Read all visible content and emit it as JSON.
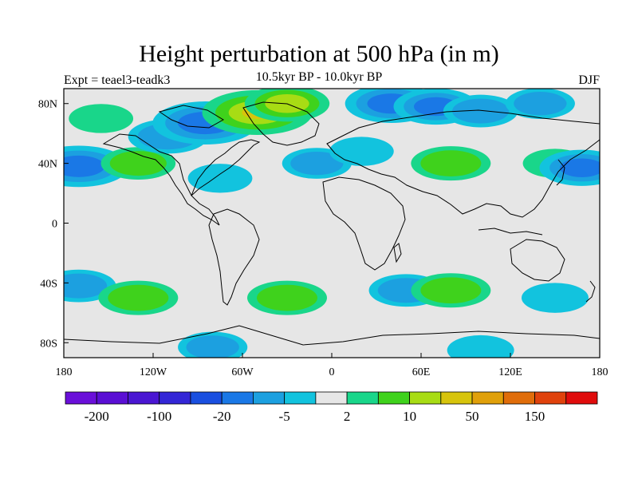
{
  "title": "Height perturbation at 500 hPa (in m)",
  "subtitle_left": "Expt = teael3-teadk3",
  "subtitle_center": "10.5kyr BP - 10.0kyr BP",
  "subtitle_right": "DJF",
  "chart_data": {
    "type": "heatmap",
    "variable": "Height perturbation at 500 hPa",
    "units": "m",
    "projection": "cylindrical-equidistant",
    "x_ticks": [
      {
        "lon": -180,
        "label": "180"
      },
      {
        "lon": -120,
        "label": "120W"
      },
      {
        "lon": -60,
        "label": "60W"
      },
      {
        "lon": 0,
        "label": "0"
      },
      {
        "lon": 60,
        "label": "60E"
      },
      {
        "lon": 120,
        "label": "120E"
      },
      {
        "lon": 180,
        "label": "180"
      }
    ],
    "y_ticks": [
      {
        "lat": 80,
        "label": "80N"
      },
      {
        "lat": 40,
        "label": "40N"
      },
      {
        "lat": 0,
        "label": "0"
      },
      {
        "lat": -40,
        "label": "40S"
      },
      {
        "lat": -80,
        "label": "80S"
      }
    ],
    "xlim": [
      -180,
      180
    ],
    "ylim": [
      -90,
      90
    ],
    "background_color": "#e6e6e6",
    "colorbar": {
      "colors": [
        "#6a0fd9",
        "#5a0ed4",
        "#4a16d2",
        "#3326d6",
        "#1a4fe0",
        "#1a78e6",
        "#1ca0e0",
        "#12c3de",
        "#e6e6e6",
        "#19d68a",
        "#3fd21c",
        "#a8dc14",
        "#d7c40c",
        "#e0a00a",
        "#e06d0a",
        "#e0420c",
        "#e00c0c"
      ],
      "labels": [
        "-200",
        "-100",
        "-20",
        "-5",
        "2",
        "10",
        "50",
        "150"
      ]
    },
    "fields": [
      {
        "lon": -170,
        "lat": 38,
        "value": -18
      },
      {
        "lon": -170,
        "lat": -42,
        "value": -8
      },
      {
        "lon": -155,
        "lat": 70,
        "value": 4
      },
      {
        "lon": -130,
        "lat": 40,
        "value": 8
      },
      {
        "lon": -110,
        "lat": 58,
        "value": -10
      },
      {
        "lon": -85,
        "lat": 67,
        "value": -20
      },
      {
        "lon": -75,
        "lat": 30,
        "value": -4
      },
      {
        "lon": -50,
        "lat": 74,
        "value": 22
      },
      {
        "lon": -30,
        "lat": 80,
        "value": 12
      },
      {
        "lon": -10,
        "lat": 40,
        "value": -6
      },
      {
        "lon": -130,
        "lat": -50,
        "value": 10
      },
      {
        "lon": -30,
        "lat": -50,
        "value": 10
      },
      {
        "lon": 20,
        "lat": 48,
        "value": -4
      },
      {
        "lon": 40,
        "lat": 80,
        "value": -15
      },
      {
        "lon": 70,
        "lat": 78,
        "value": -12
      },
      {
        "lon": 100,
        "lat": 75,
        "value": -8
      },
      {
        "lon": 80,
        "lat": 40,
        "value": 10
      },
      {
        "lon": 50,
        "lat": -45,
        "value": -8
      },
      {
        "lon": 80,
        "lat": -45,
        "value": 10
      },
      {
        "lon": 140,
        "lat": 80,
        "value": -6
      },
      {
        "lon": 150,
        "lat": 40,
        "value": 4
      },
      {
        "lon": 168,
        "lat": 37,
        "value": -12
      },
      {
        "lon": 150,
        "lat": -50,
        "value": -5
      },
      {
        "lon": -80,
        "lat": -83,
        "value": -6
      },
      {
        "lon": 100,
        "lat": -85,
        "value": -5
      }
    ]
  }
}
